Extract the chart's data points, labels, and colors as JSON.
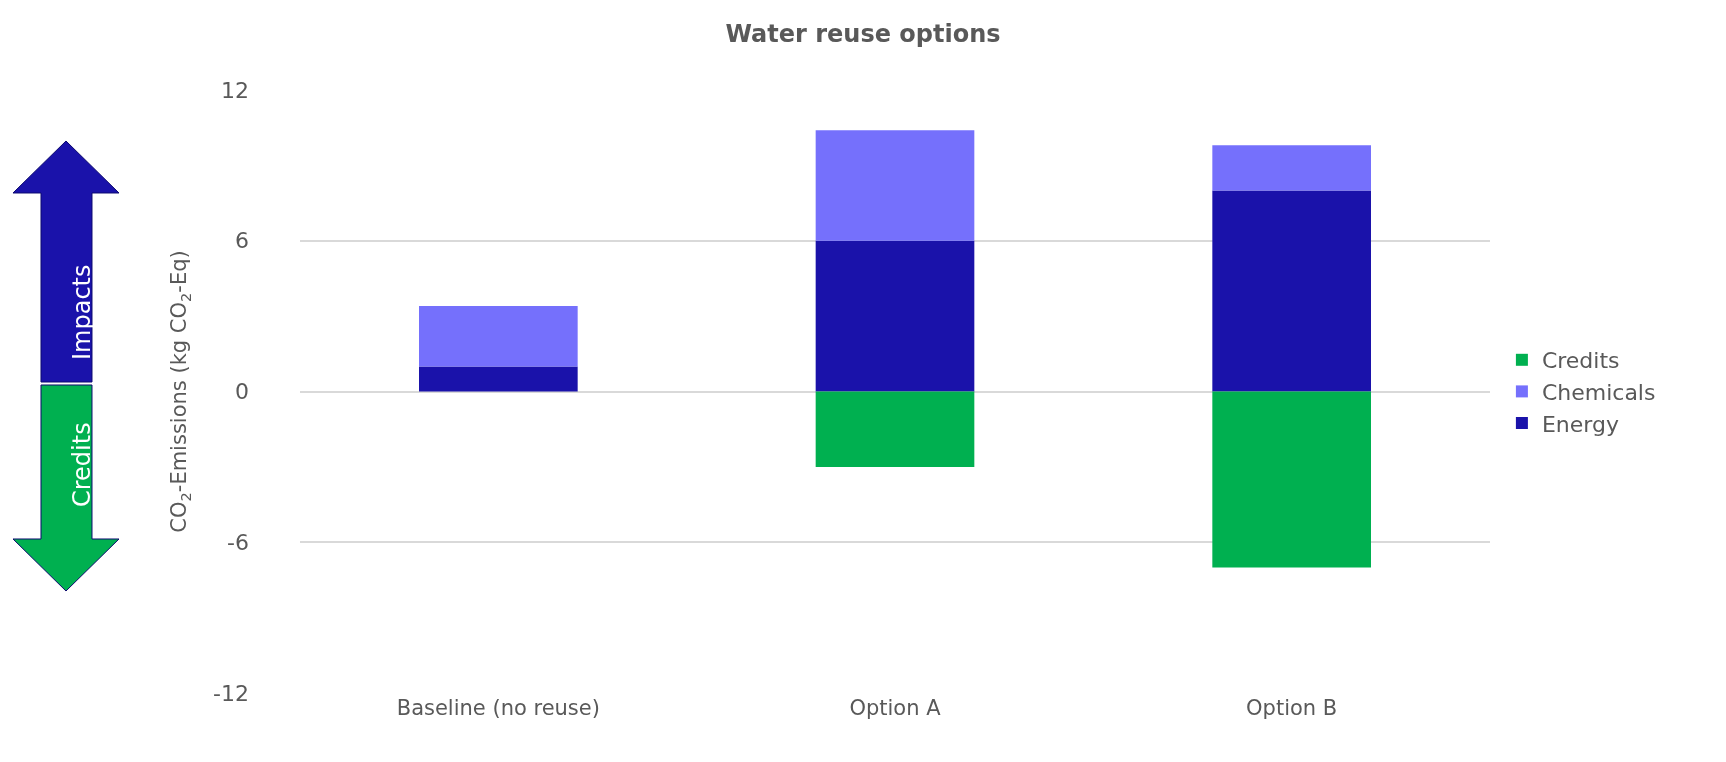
{
  "chart_data": {
    "type": "bar",
    "title": "Water reuse options",
    "ylabel": "CO$_{2}$-Emissions (kg CO$_{2}$-Eq)",
    "categories": [
      "Baseline (no reuse)",
      "Option A",
      "Option B"
    ],
    "stacked": true,
    "series": [
      {
        "name": "Energy",
        "color": "#1a12aa",
        "values": [
          1.0,
          6.0,
          8.0
        ]
      },
      {
        "name": "Chemicals",
        "color": "#7570fc",
        "values": [
          2.4,
          4.4,
          1.8
        ]
      },
      {
        "name": "Credits",
        "color": "#00b050",
        "values": [
          0,
          -3.0,
          -7.0
        ]
      }
    ],
    "ylim": [
      -12,
      12
    ],
    "yticks": [
      -12,
      -6,
      0,
      6,
      12
    ],
    "grid": "y",
    "legend": "right",
    "annotations": [
      "Impacts",
      "Credits"
    ]
  }
}
